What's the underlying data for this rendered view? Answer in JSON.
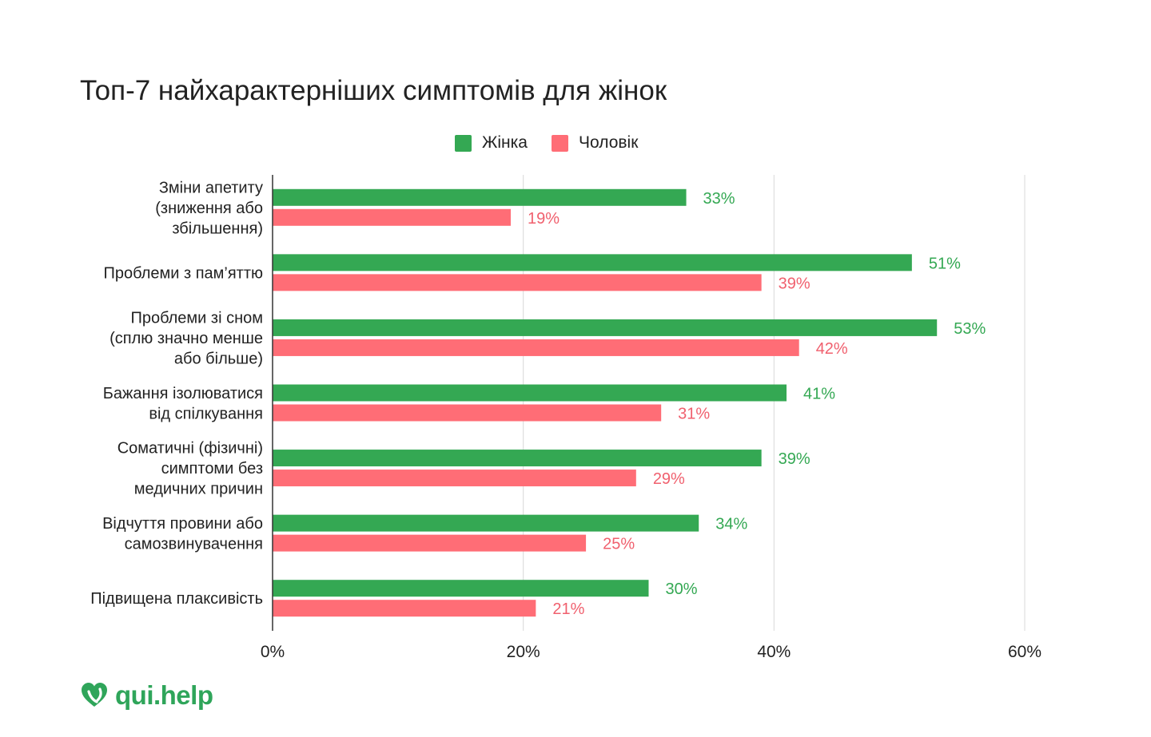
{
  "chart_data": {
    "type": "bar",
    "orientation": "horizontal",
    "title": "Топ-7 найхарактерніших симптомів для жінок",
    "categories": [
      [
        "Зміни апетиту",
        "(зниження або",
        "збільшення)"
      ],
      [
        "Проблеми з пам’яттю"
      ],
      [
        "Проблеми зі сном",
        "(сплю значно менше",
        "або більше)"
      ],
      [
        "Бажання ізолюватися",
        "від спілкування"
      ],
      [
        "Соматичні (фізичні)",
        "симптоми без",
        "медичних причин"
      ],
      [
        "Відчуття провини або",
        "самозвинувачення"
      ],
      [
        "Підвищена плаксивість"
      ]
    ],
    "series": [
      {
        "name": "Жінка",
        "color": "#34a853",
        "values": [
          33,
          51,
          53,
          41,
          39,
          34,
          30
        ],
        "labels": [
          "33%",
          "51%",
          "53%",
          "41%",
          "39%",
          "34%",
          "30%"
        ]
      },
      {
        "name": "Чоловік",
        "color": "#ff6d76",
        "values": [
          19,
          39,
          42,
          31,
          29,
          25,
          21
        ],
        "labels": [
          "19%",
          "39%",
          "42%",
          "31%",
          "29%",
          "25%",
          "21%"
        ]
      }
    ],
    "xlim": [
      0,
      60
    ],
    "xticks": [
      0,
      20,
      40,
      60
    ],
    "xtick_labels": [
      "0%",
      "20%",
      "40%",
      "60%"
    ],
    "grid": true,
    "legend_position": "top-center"
  },
  "logo": {
    "text": "qui.help",
    "icon": "heart-icon",
    "color": "#2fa55a"
  }
}
